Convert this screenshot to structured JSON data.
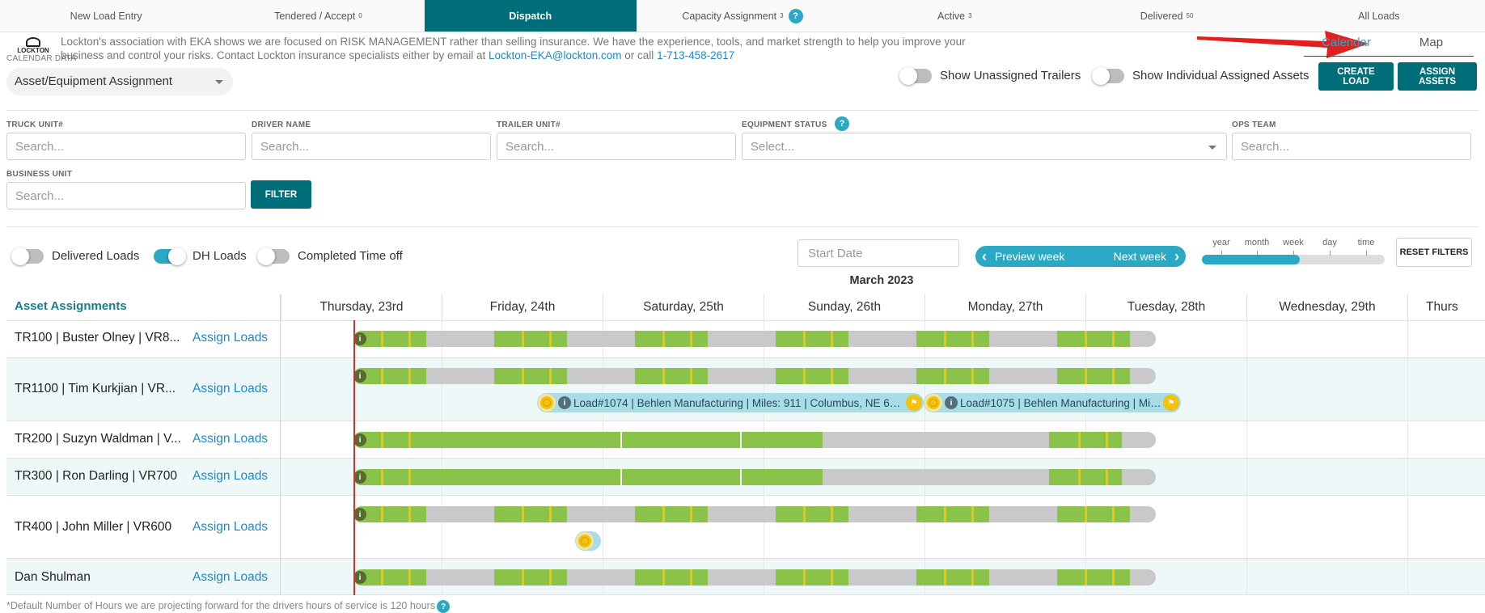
{
  "tabs": [
    {
      "label": "New Load Entry",
      "badge": ""
    },
    {
      "label": "Tendered / Accept",
      "badge": "0"
    },
    {
      "label": "Dispatch",
      "badge": ""
    },
    {
      "label": "Capacity Assignment",
      "badge": "3"
    },
    {
      "label": "Active",
      "badge": "3"
    },
    {
      "label": "Delivered",
      "badge": "50"
    },
    {
      "label": "All Loads",
      "badge": ""
    }
  ],
  "banner": {
    "logo_text": "LOCKTON",
    "text_before": "Lockton's association with EKA shows we are focused on RISK MANAGEMENT rather than selling insurance. We have the experience, tools, and market strength to help you improve your business and control your risks. Contact Lockton insurance specialists either by email at ",
    "email": "Lockton-EKA@lockton.com",
    "text_middle": " or call ",
    "phone": "1-713-458-2617"
  },
  "calendar_data_label": "CALENDAR DATA",
  "view_switch": {
    "calendar": "Calendar",
    "map": "Map"
  },
  "asset_select": {
    "value": "Asset/Equipment Assignment"
  },
  "toggles_top": {
    "unassigned_trailers": "Show Unassigned Trailers",
    "individual_assets": "Show Individual Assigned Assets"
  },
  "buttons": {
    "create_load": "CREATE LOAD",
    "assign_assets": "ASSIGN ASSETS",
    "filter": "FILTER",
    "reset_filters": "RESET FILTERS"
  },
  "filters": {
    "truck_unit": {
      "label": "TRUCK UNIT#",
      "placeholder": "Search..."
    },
    "driver_name": {
      "label": "DRIVER NAME",
      "placeholder": "Search..."
    },
    "trailer_unit": {
      "label": "TRAILER UNIT#",
      "placeholder": "Search..."
    },
    "equipment_status": {
      "label": "EQUIPMENT STATUS",
      "placeholder": "Select..."
    },
    "ops_team": {
      "label": "OPS TEAM",
      "placeholder": "Search..."
    },
    "business_unit": {
      "label": "BUSINESS UNIT",
      "placeholder": "Search..."
    }
  },
  "toggles_bottom": {
    "delivered_loads": "Delivered Loads",
    "dh_loads": "DH Loads",
    "completed_time_off": "Completed Time off"
  },
  "start_date_placeholder": "Start Date",
  "week_nav": {
    "prev": "Preview week",
    "next": "Next week"
  },
  "zoom": {
    "labels": [
      "year",
      "month",
      "week",
      "day",
      "time"
    ],
    "selected": "week"
  },
  "month_label": "March 2023",
  "grid": {
    "title": "Asset Assignments",
    "days": [
      "Thursday, 23rd",
      "Friday, 24th",
      "Saturday, 25th",
      "Sunday, 26th",
      "Monday, 27th",
      "Tuesday, 28th",
      "Wednesday, 29th",
      "Thurs"
    ],
    "rows": [
      {
        "name": "TR100 | Buster Olney | VR8...",
        "link": "Assign Loads"
      },
      {
        "name": "TR1100 | Tim Kurkjian | VR...",
        "link": "Assign Loads"
      },
      {
        "name": "TR200 | Suzyn Waldman | V...",
        "link": "Assign Loads"
      },
      {
        "name": "TR300 | Ron Darling | VR700",
        "link": "Assign Loads"
      },
      {
        "name": "TR400 | John Miller | VR600",
        "link": "Assign Loads"
      },
      {
        "name": "Dan Shulman",
        "link": "Assign Loads"
      }
    ],
    "loads": [
      {
        "text": "Load#1074 | Behlen Manufacturing | Miles: 911 |  Columbus, NE 68..."
      },
      {
        "text": "Load#1075 | Behlen Manufacturing | Mil..."
      }
    ]
  },
  "footnote": "*Default Number of Hours we are projecting forward for the drivers hours of service is 120 hours",
  "colors": {
    "teal": "#006e78",
    "accent": "#2aa8c4",
    "drive": "#8bc34a",
    "rest": "#c9c9cb",
    "break": "#f4c20d",
    "now": "#d32f2f"
  }
}
